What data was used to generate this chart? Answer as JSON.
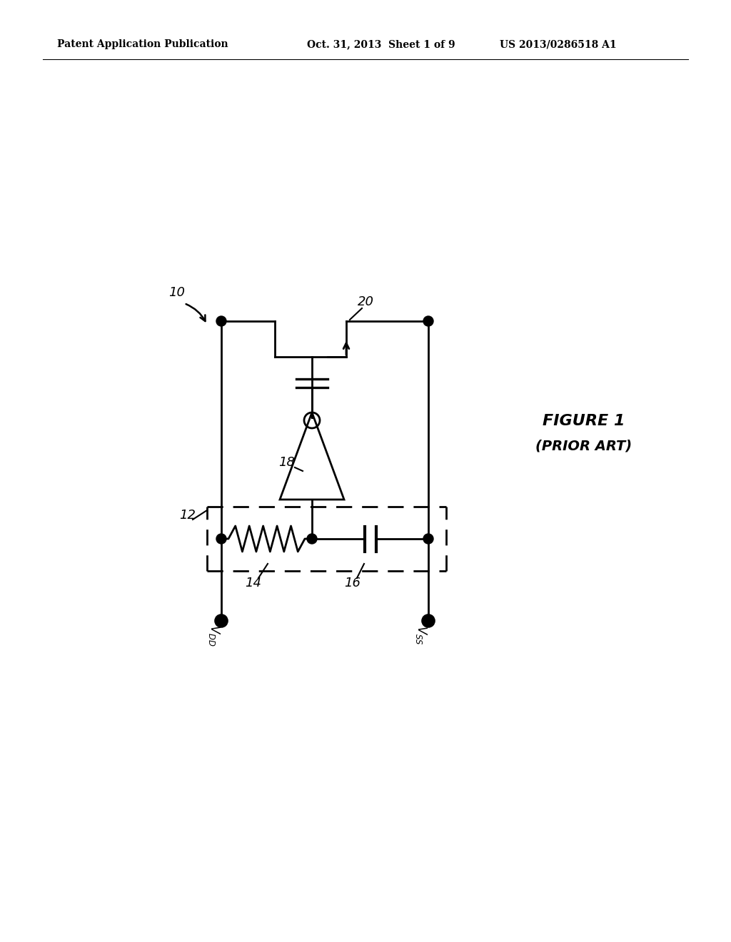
{
  "bg_color": "#ffffff",
  "line_color": "#000000",
  "header_left": "Patent Application Publication",
  "header_mid": "Oct. 31, 2013  Sheet 1 of 9",
  "header_right": "US 2013/0286518 A1",
  "label_10": "10",
  "label_12": "12",
  "label_14": "14",
  "label_16": "16",
  "label_18": "18",
  "label_20": "20",
  "fig_label1": "FIGURE 1",
  "fig_label2": "(PRIOR ART)"
}
